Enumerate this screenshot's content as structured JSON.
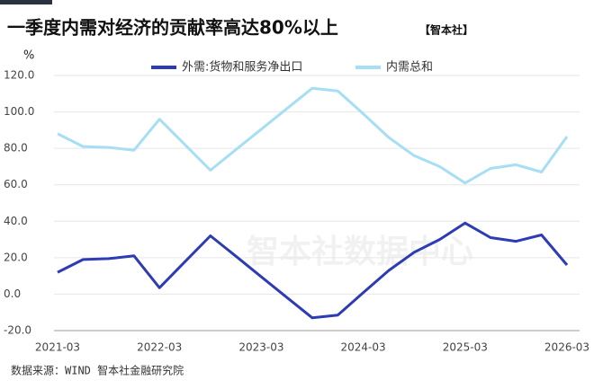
{
  "chart_data": {
    "type": "line",
    "title": "一季度内需对经济的贡献率高达80%以上",
    "title_tag": "【智本社】",
    "y_unit": "%",
    "watermark": "智本社数据中心",
    "source": "数据来源：WIND 智本社金融研究院",
    "categories": [
      "2021-03",
      null,
      null,
      null,
      "2022-03",
      null,
      null,
      null,
      "2023-03",
      null,
      null,
      null,
      "2024-03",
      null,
      null,
      null,
      "2025-03",
      null,
      null,
      null,
      "2026-03"
    ],
    "series": [
      {
        "name": "外需:货物和服务净出口",
        "color": "#2e3cb4",
        "values": [
          12,
          19,
          19.5,
          21,
          3.5,
          17.8,
          32,
          20.8,
          9.5,
          -1.8,
          -13,
          -11.5,
          0.8,
          13,
          23,
          30,
          39,
          31,
          29,
          32.5,
          16
        ]
      },
      {
        "name": "内需总和",
        "color": "#a6def4",
        "values": [
          88,
          81,
          80.5,
          79,
          96,
          82,
          68,
          79.3,
          90.5,
          101.8,
          113,
          111.5,
          99,
          86,
          76,
          70,
          61,
          69,
          71,
          67,
          86.5
        ]
      }
    ],
    "ylim": [
      -20,
      120
    ],
    "yticks": [
      {
        "value": -20,
        "label": "-20.0"
      },
      {
        "value": 0,
        "label": "0.0"
      },
      {
        "value": 20,
        "label": "20.0"
      },
      {
        "value": 40,
        "label": "40.0"
      },
      {
        "value": 60,
        "label": "60.0"
      },
      {
        "value": 80,
        "label": "80.0"
      },
      {
        "value": 100,
        "label": "100.0"
      },
      {
        "value": 120,
        "label": "120.0"
      }
    ],
    "grid": true
  }
}
